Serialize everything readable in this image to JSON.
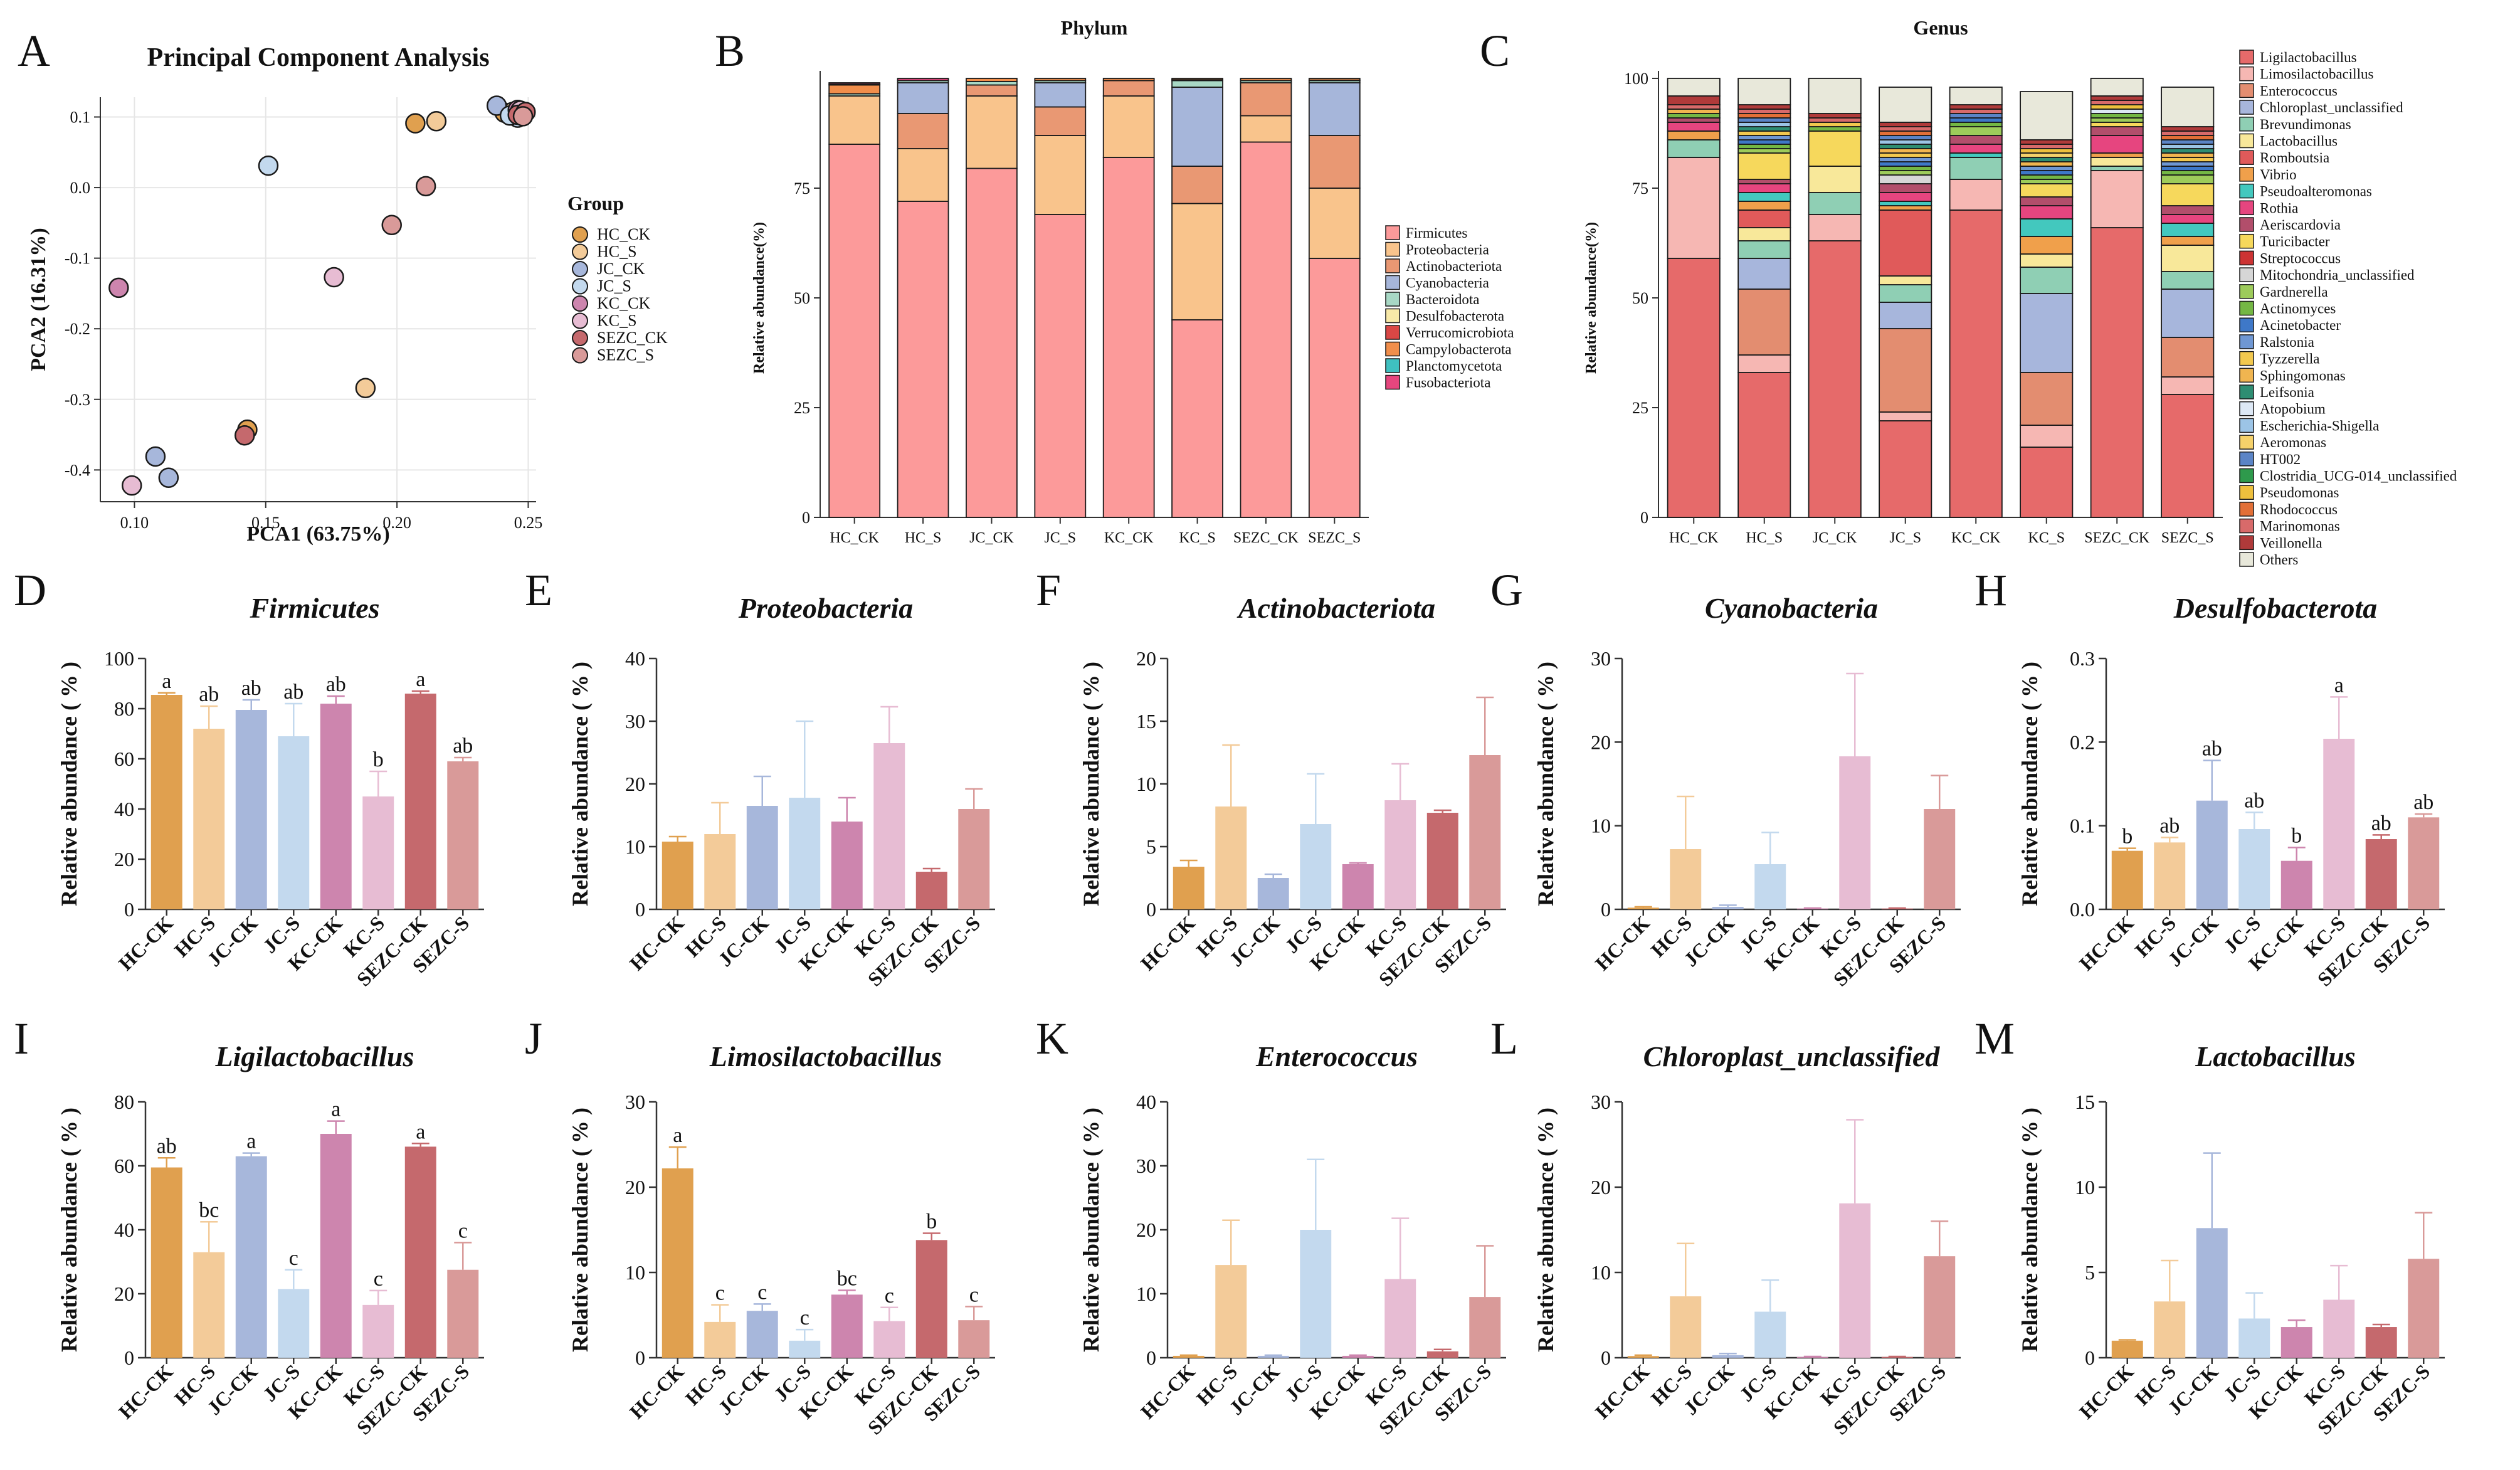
{
  "colors": {
    "HC_CK": "#E0A04F",
    "HC_S": "#F3CB99",
    "JC_CK": "#A7B7DB",
    "JC_S": "#C3D9EE",
    "KC_CK": "#CD85AE",
    "KC_S": "#E7BCD3",
    "SEZC_CK": "#C5696D",
    "SEZC_S": "#D99A99"
  },
  "panelA": {
    "letter": "A",
    "title": "Principal Component Analysis",
    "xlabel": "PCA1 (63.75%)",
    "ylabel": "PCA2 (16.31%)",
    "xticks": [
      "0.10",
      "0.15",
      "0.20",
      "0.25"
    ],
    "yticks": [
      "0.1",
      "0.0",
      "-0.1",
      "-0.2",
      "-0.3",
      "-0.4"
    ],
    "legend_title": "Group",
    "groups": [
      "HC_CK",
      "HC_S",
      "JC_CK",
      "JC_S",
      "KC_CK",
      "KC_S",
      "SEZC_CK",
      "SEZC_S"
    ],
    "points": [
      {
        "group": "HC_CK",
        "x": 0.241,
        "y": 0.106
      },
      {
        "group": "HC_CK",
        "x": 0.143,
        "y": -0.343
      },
      {
        "group": "HC_CK",
        "x": 0.207,
        "y": 0.091
      },
      {
        "group": "HC_S",
        "x": 0.215,
        "y": 0.094
      },
      {
        "group": "HC_S",
        "x": 0.188,
        "y": -0.284
      },
      {
        "group": "HC_S",
        "x": 0.244,
        "y": 0.107
      },
      {
        "group": "JC_CK",
        "x": 0.108,
        "y": -0.381
      },
      {
        "group": "JC_CK",
        "x": 0.113,
        "y": -0.411
      },
      {
        "group": "JC_CK",
        "x": 0.238,
        "y": 0.116
      },
      {
        "group": "JC_S",
        "x": 0.151,
        "y": 0.031
      },
      {
        "group": "JC_S",
        "x": 0.246,
        "y": 0.099
      },
      {
        "group": "JC_S",
        "x": 0.243,
        "y": 0.102
      },
      {
        "group": "KC_CK",
        "x": 0.094,
        "y": -0.142
      },
      {
        "group": "KC_CK",
        "x": 0.248,
        "y": 0.104
      },
      {
        "group": "KC_CK",
        "x": 0.246,
        "y": 0.11
      },
      {
        "group": "KC_S",
        "x": 0.099,
        "y": -0.422
      },
      {
        "group": "KC_S",
        "x": 0.176,
        "y": -0.127
      },
      {
        "group": "KC_S",
        "x": 0.247,
        "y": 0.109
      },
      {
        "group": "SEZC_CK",
        "x": 0.142,
        "y": -0.351
      },
      {
        "group": "SEZC_CK",
        "x": 0.246,
        "y": 0.103
      },
      {
        "group": "SEZC_CK",
        "x": 0.249,
        "y": 0.107
      },
      {
        "group": "SEZC_S",
        "x": 0.198,
        "y": -0.053
      },
      {
        "group": "SEZC_S",
        "x": 0.211,
        "y": 0.002
      },
      {
        "group": "SEZC_S",
        "x": 0.248,
        "y": 0.101
      }
    ]
  },
  "panelB": {
    "letter": "B",
    "title": "Phylum",
    "ylabel": "Relative abundance(%)",
    "categories": [
      "HC_CK",
      "HC_S",
      "JC_CK",
      "JC_S",
      "KC_CK",
      "KC_S",
      "SEZC_CK",
      "SEZC_S"
    ],
    "yticks": [
      "0",
      "25",
      "50",
      "75"
    ],
    "taxa": [
      "Firmicutes",
      "Proteobacteria",
      "Actinobacteriota",
      "Cyanobacteria",
      "Bacteroidota",
      "Desulfobacterota",
      "Verrucomicrobiota",
      "Campylobacterota",
      "Planctomycetota",
      "Fusobacteriota"
    ],
    "taxa_colors": [
      "#FC9A9A",
      "#F9C48C",
      "#E99873",
      "#A6B6DA",
      "#A8D8C5",
      "#F8E9A8",
      "#D94745",
      "#F18E4B",
      "#3FC0C0",
      "#E6467E"
    ],
    "rows": [
      [
        85,
        11,
        0,
        0,
        0.5,
        0,
        0,
        2,
        0.2,
        0.3
      ],
      [
        72,
        12,
        8,
        7,
        0.5,
        0,
        0,
        0,
        0,
        0.5
      ],
      [
        79.5,
        16.5,
        2.5,
        0,
        0.8,
        0,
        0,
        0.7,
        0,
        0
      ],
      [
        69,
        18,
        6.5,
        5.5,
        0.5,
        0,
        0,
        0.5,
        0,
        0
      ],
      [
        82,
        14,
        3.5,
        0,
        0,
        0,
        0,
        0.5,
        0,
        0
      ],
      [
        45,
        26.5,
        8.5,
        18,
        1.5,
        0.2,
        0,
        0.3,
        0,
        0
      ],
      [
        85.5,
        6,
        7.5,
        0,
        0.5,
        0,
        0,
        0.5,
        0,
        0
      ],
      [
        59,
        16,
        12,
        12,
        0.5,
        0.1,
        0,
        0.4,
        0,
        0
      ]
    ]
  },
  "panelC": {
    "letter": "C",
    "title": "Genus",
    "ylabel": "Relative abundance(%)",
    "categories": [
      "HC_CK",
      "HC_S",
      "JC_CK",
      "JC_S",
      "KC_CK",
      "KC_S",
      "SEZC_CK",
      "SEZC_S"
    ],
    "yticks": [
      "0",
      "25",
      "50",
      "75",
      "100"
    ],
    "taxa": [
      "Ligilactobacillus",
      "Limosilactobacillus",
      "Enterococcus",
      "Chloroplast_unclassified",
      "Brevundimonas",
      "Lactobacillus",
      "Romboutsia",
      "Vibrio",
      "Pseudoalteromonas",
      "Rothia",
      "Aeriscardovia",
      "Turicibacter",
      "Streptococcus",
      "Mitochondria_unclassified",
      "Gardnerella",
      "Actinomyces",
      "Acinetobacter",
      "Ralstonia",
      "Tyzzerella",
      "Sphingomonas",
      "Leifsonia",
      "Atopobium",
      "Escherichia-Shigella",
      "Aeromonas",
      "HT002",
      "Clostridia_UCG-014_unclassified",
      "Pseudomonas",
      "Rhodococcus",
      "Marinomonas",
      "Veillonella",
      "Others"
    ],
    "taxa_colors": [
      "#E66A6A",
      "#F6B7B3",
      "#E38D70",
      "#A7B6DC",
      "#8FCFB4",
      "#F8E89A",
      "#E05A5A",
      "#F0A04B",
      "#43C8BE",
      "#E6457F",
      "#B24E6B",
      "#F6D85C",
      "#CC3333",
      "#D6D6D6",
      "#9DCB5A",
      "#74B744",
      "#3E78C8",
      "#6F97D3",
      "#F2C84E",
      "#F0B550",
      "#2E8D72",
      "#DDE8F5",
      "#9CC4E6",
      "#F5D16A",
      "#5B84C6",
      "#2E9A4C",
      "#EEC03D",
      "#E26F37",
      "#D86A6A",
      "#B03A3A",
      "#E8E8DA"
    ],
    "rows": [
      [
        59,
        23,
        0,
        0,
        4,
        0,
        0,
        2,
        0,
        2,
        1,
        0,
        0,
        0,
        0,
        1,
        0,
        0,
        0,
        1,
        0,
        0,
        0,
        0,
        0,
        0,
        0,
        0,
        1,
        2,
        4
      ],
      [
        33,
        4,
        15,
        7,
        4,
        3,
        4,
        2,
        2,
        2,
        1,
        6,
        0,
        0,
        1,
        1,
        1,
        1,
        1,
        0,
        1,
        0,
        1,
        0,
        1,
        0,
        0,
        1,
        1,
        1,
        6
      ],
      [
        63,
        6,
        0,
        0,
        5,
        6,
        0,
        0,
        0,
        0,
        0,
        8,
        0,
        0,
        0,
        1,
        0,
        0,
        1,
        0,
        0,
        0,
        0,
        0,
        0,
        0,
        0,
        0,
        1,
        1,
        8
      ],
      [
        22,
        2,
        19,
        6,
        4,
        2,
        15,
        1,
        1,
        2,
        2,
        0,
        0,
        2,
        1,
        1,
        1,
        1,
        1,
        1,
        1,
        0,
        1,
        0,
        1,
        0,
        0,
        1,
        1,
        1,
        8
      ],
      [
        70,
        7,
        0,
        0,
        5,
        0,
        0,
        0,
        1,
        2,
        2,
        0,
        0,
        0,
        2,
        1,
        1,
        0,
        0,
        0,
        0,
        0,
        0,
        0,
        1,
        0,
        0,
        0,
        1,
        1,
        4
      ],
      [
        16,
        5,
        12,
        18,
        6,
        3,
        0,
        4,
        4,
        3,
        2,
        3,
        0,
        0,
        1,
        1,
        1,
        1,
        0,
        1,
        1,
        0,
        0,
        1,
        0,
        0,
        1,
        0,
        1,
        1,
        11
      ],
      [
        66,
        13,
        0,
        0,
        1,
        2,
        0,
        1,
        0,
        4,
        2,
        1,
        0,
        0,
        1,
        1,
        0,
        0,
        0,
        0,
        0,
        1,
        0,
        0,
        0,
        0,
        1,
        0,
        1,
        1,
        4
      ],
      [
        28,
        4,
        9,
        11,
        4,
        6,
        0,
        2,
        3,
        2,
        2,
        5,
        0,
        0,
        2,
        1,
        1,
        1,
        1,
        1,
        1,
        0,
        1,
        0,
        1,
        0,
        0,
        1,
        1,
        1,
        9
      ]
    ]
  },
  "bar_panels": [
    {
      "letter": "D",
      "title": "Firmicutes",
      "ylabel": "Relative abundance ( % )",
      "ymax": 100,
      "yticks": [
        "0",
        "20",
        "40",
        "60",
        "80",
        "100"
      ],
      "categories": [
        "HC-CK",
        "HC-S",
        "JC-CK",
        "JC-S",
        "KC-CK",
        "KC-S",
        "SEZC-CK",
        "SEZC-S"
      ],
      "values": [
        85.5,
        72,
        79.5,
        69,
        82,
        45,
        86,
        59
      ],
      "errors": [
        0.8,
        9,
        4,
        13,
        3,
        10,
        1,
        1.5
      ],
      "sig": [
        "a",
        "ab",
        "ab",
        "ab",
        "ab",
        "b",
        "a",
        "ab"
      ]
    },
    {
      "letter": "E",
      "title": "Proteobacteria",
      "ylabel": "Relative abundance ( % )",
      "ymax": 40,
      "yticks": [
        "0",
        "10",
        "20",
        "30",
        "40"
      ],
      "categories": [
        "HC-CK",
        "HC-S",
        "JC-CK",
        "JC-S",
        "KC-CK",
        "KC-S",
        "SEZC-CK",
        "SEZC-S"
      ],
      "values": [
        10.8,
        12,
        16.5,
        17.8,
        14,
        26.5,
        6,
        16
      ],
      "errors": [
        0.8,
        5,
        4.7,
        12.2,
        3.8,
        5.8,
        0.5,
        3.2
      ],
      "sig": [
        "",
        "",
        "",
        "",
        "",
        "",
        "",
        ""
      ]
    },
    {
      "letter": "F",
      "title": "Actinobacteriota",
      "ylabel": "Relative abundance ( % )",
      "ymax": 20,
      "yticks": [
        "0",
        "5",
        "10",
        "15",
        "20"
      ],
      "categories": [
        "HC-CK",
        "HC-S",
        "JC-CK",
        "JC-S",
        "KC-CK",
        "KC-S",
        "SEZC-CK",
        "SEZC-S"
      ],
      "values": [
        3.4,
        8.2,
        2.5,
        6.8,
        3.6,
        8.7,
        7.7,
        12.3
      ],
      "errors": [
        0.5,
        4.9,
        0.3,
        4,
        0.1,
        2.9,
        0.2,
        4.6
      ],
      "sig": [
        "",
        "",
        "",
        "",
        "",
        "",
        "",
        ""
      ]
    },
    {
      "letter": "G",
      "title": "Cyanobacteria",
      "ylabel": "Relative abundance ( % )",
      "ymax": 30,
      "yticks": [
        "0",
        "10",
        "20",
        "30"
      ],
      "categories": [
        "HC-CK",
        "HC-S",
        "JC-CK",
        "JC-S",
        "KC-CK",
        "KC-S",
        "SEZC-CK",
        "SEZC-S"
      ],
      "values": [
        0.2,
        7.2,
        0.3,
        5.4,
        0.1,
        18.3,
        0.1,
        12
      ],
      "errors": [
        0.1,
        6.3,
        0.2,
        3.8,
        0.05,
        9.9,
        0.05,
        4
      ],
      "sig": [
        "",
        "",
        "",
        "",
        "",
        "",
        "",
        ""
      ]
    },
    {
      "letter": "H",
      "title": "Desulfobacterota",
      "ylabel": "Relative abundance ( % )",
      "ymax": 0.3,
      "yticks": [
        "0.0",
        "0.1",
        "0.2",
        "0.3"
      ],
      "categories": [
        "HC-CK",
        "HC-S",
        "JC-CK",
        "JC-S",
        "KC-CK",
        "KC-S",
        "SEZC-CK",
        "SEZC-S"
      ],
      "values": [
        0.07,
        0.08,
        0.13,
        0.096,
        0.058,
        0.204,
        0.084,
        0.11
      ],
      "errors": [
        0.003,
        0.006,
        0.048,
        0.02,
        0.016,
        0.05,
        0.005,
        0.004
      ],
      "sig": [
        "b",
        "ab",
        "ab",
        "ab",
        "b",
        "a",
        "ab",
        "ab"
      ]
    },
    {
      "letter": "I",
      "title": "Ligilactobacillus",
      "ylabel": "Relative abundance ( % )",
      "ymax": 80,
      "yticks": [
        "0",
        "20",
        "40",
        "60",
        "80"
      ],
      "categories": [
        "HC-CK",
        "HC-S",
        "JC-CK",
        "JC-S",
        "KC-CK",
        "KC-S",
        "SEZC-CK",
        "SEZC-S"
      ],
      "values": [
        59.5,
        33,
        63,
        21.5,
        70,
        16.5,
        66,
        27.5
      ],
      "errors": [
        3,
        9.5,
        1,
        6,
        4,
        4.5,
        1,
        8.5
      ],
      "sig": [
        "ab",
        "bc",
        "a",
        "c",
        "a",
        "c",
        "a",
        "c"
      ]
    },
    {
      "letter": "J",
      "title": "Limosilactobacillus",
      "ylabel": "Relative abundance ( % )",
      "ymax": 30,
      "yticks": [
        "0",
        "10",
        "20",
        "30"
      ],
      "categories": [
        "HC-CK",
        "HC-S",
        "JC-CK",
        "JC-S",
        "KC-CK",
        "KC-S",
        "SEZC-CK",
        "SEZC-S"
      ],
      "values": [
        22.2,
        4.2,
        5.5,
        2,
        7.4,
        4.3,
        13.8,
        4.4
      ],
      "errors": [
        2.5,
        2,
        0.8,
        1.3,
        0.5,
        1.6,
        0.8,
        1.6
      ],
      "sig": [
        "a",
        "c",
        "c",
        "c",
        "bc",
        "c",
        "b",
        "c"
      ]
    },
    {
      "letter": "K",
      "title": "Enterococcus",
      "ylabel": "Relative abundance ( % )",
      "ymax": 40,
      "yticks": [
        "0",
        "10",
        "20",
        "30",
        "40"
      ],
      "categories": [
        "HC-CK",
        "HC-S",
        "JC-CK",
        "JC-S",
        "KC-CK",
        "KC-S",
        "SEZC-CK",
        "SEZC-S"
      ],
      "values": [
        0.3,
        14.5,
        0.3,
        20,
        0.3,
        12.3,
        1,
        9.5
      ],
      "errors": [
        0.1,
        7,
        0.1,
        11,
        0.1,
        9.5,
        0.3,
        8
      ],
      "sig": [
        "",
        "",
        "",
        "",
        "",
        "",
        "",
        ""
      ]
    },
    {
      "letter": "L",
      "title": "Chloroplast_unclassified",
      "ylabel": "Relative abundance ( % )",
      "ymax": 30,
      "yticks": [
        "0",
        "10",
        "20",
        "30"
      ],
      "categories": [
        "HC-CK",
        "HC-S",
        "JC-CK",
        "JC-S",
        "KC-CK",
        "KC-S",
        "SEZC-CK",
        "SEZC-S"
      ],
      "values": [
        0.2,
        7.2,
        0.3,
        5.4,
        0.1,
        18.1,
        0.1,
        11.9
      ],
      "errors": [
        0.1,
        6.2,
        0.2,
        3.7,
        0.05,
        9.8,
        0.05,
        4.1
      ],
      "sig": [
        "",
        "",
        "",
        "",
        "",
        "",
        "",
        ""
      ]
    },
    {
      "letter": "M",
      "title": "Lactobacillus",
      "ylabel": "Relative abundance ( % )",
      "ymax": 15,
      "yticks": [
        "0",
        "5",
        "10",
        "15"
      ],
      "categories": [
        "HC-CK",
        "HC-S",
        "JC-CK",
        "JC-S",
        "KC-CK",
        "KC-S",
        "SEZC-CK",
        "SEZC-S"
      ],
      "values": [
        1,
        3.3,
        7.6,
        2.3,
        1.8,
        3.4,
        1.8,
        5.8
      ],
      "errors": [
        0.05,
        2.4,
        4.4,
        1.5,
        0.4,
        2,
        0.15,
        2.7
      ],
      "sig": [
        "",
        "",
        "",
        "",
        "",
        "",
        "",
        ""
      ]
    }
  ]
}
